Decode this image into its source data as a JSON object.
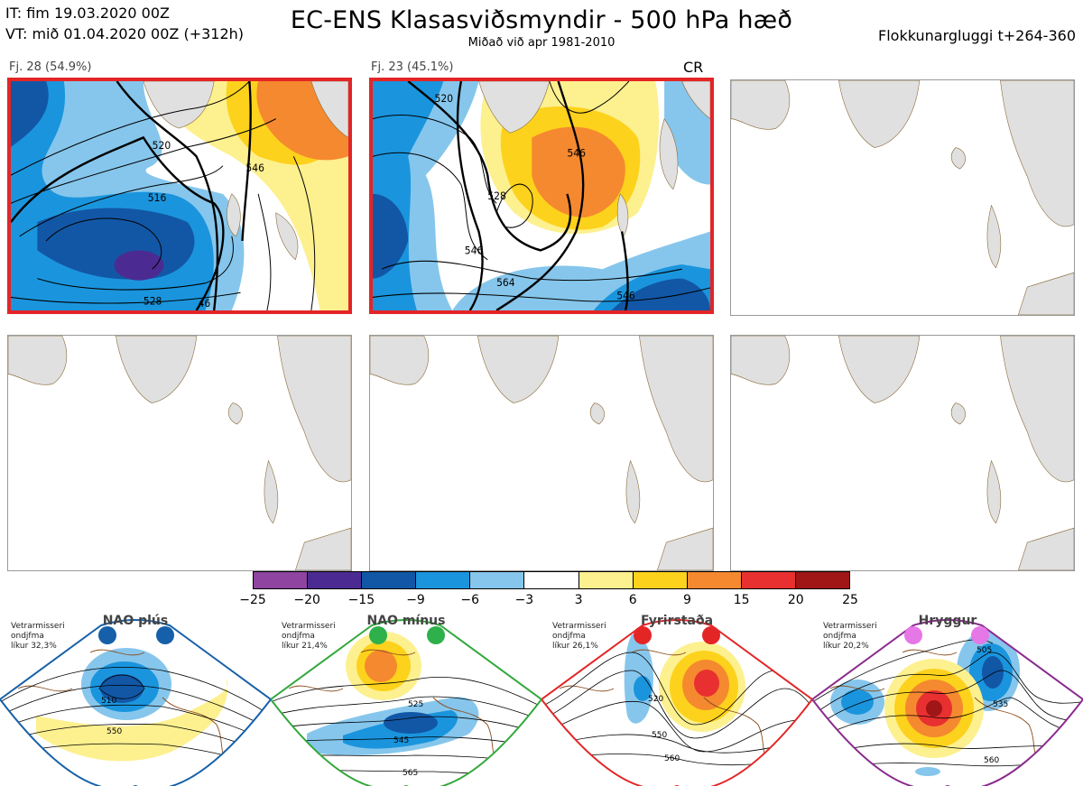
{
  "header": {
    "it": "IT: fim 19.03.2020 00Z",
    "vt": "VT: mið 01.04.2020 00Z  (+312h)",
    "title": "EC-ENS Klasasviðsmyndir - 500 hPa hæð",
    "subtitle": "Miðað við apr 1981-2010",
    "window": "Flokkunargluggi t+264-360"
  },
  "panels": [
    {
      "label": "Fj. 28 (54.9%)",
      "selected": true,
      "contours": [
        "520",
        "516",
        "546",
        "528",
        "46"
      ]
    },
    {
      "label": "Fj. 23 (45.1%)",
      "selected": true,
      "tag": "CR",
      "contours": [
        "520",
        "546",
        "528",
        "546",
        "564",
        "546"
      ]
    },
    {
      "label": "",
      "selected": false
    },
    {
      "label": "",
      "selected": false
    },
    {
      "label": "",
      "selected": false
    },
    {
      "label": "",
      "selected": false
    }
  ],
  "colorbar": {
    "ticks": [
      "−25",
      "−20",
      "−15",
      "−9",
      "−6",
      "−3",
      "3",
      "6",
      "9",
      "15",
      "20",
      "25"
    ],
    "colors": [
      "#8e44a0",
      "#4b2b91",
      "#1257a6",
      "#1a95dd",
      "#86c6ec",
      "#ffffff",
      "#fdf08f",
      "#fdd21c",
      "#f5892f",
      "#e83030",
      "#a01515"
    ]
  },
  "regimes": [
    {
      "name": "NAO plús",
      "text": [
        "Vetrarmisseri",
        "ondjfma",
        "líkur 32,3%"
      ],
      "frame_color": "#1560a8",
      "dot_color": "#1560a8",
      "contours": [
        "510",
        "550"
      ]
    },
    {
      "name": "NAO mínus",
      "text": [
        "Vetrarmisseri",
        "ondjfma",
        "líkur 21,4%"
      ],
      "frame_color": "#33a83c",
      "dot_color": "#2eb04b",
      "contours": [
        "525",
        "545",
        "565"
      ]
    },
    {
      "name": "Fyrirstaða",
      "text": [
        "Vetrarmisseri",
        "ondjfma",
        "líkur 26,1%"
      ],
      "frame_color": "#e32526",
      "dot_color": "#e32526",
      "contours": [
        "520",
        "550",
        "560"
      ]
    },
    {
      "name": "Hryggur",
      "text": [
        "Vetrarmisseri",
        "ondjfma",
        "líkur 20,2%"
      ],
      "frame_color": "#8a2a8e",
      "dot_color": "#e677e6",
      "contours": [
        "505",
        "535",
        "560"
      ]
    }
  ]
}
